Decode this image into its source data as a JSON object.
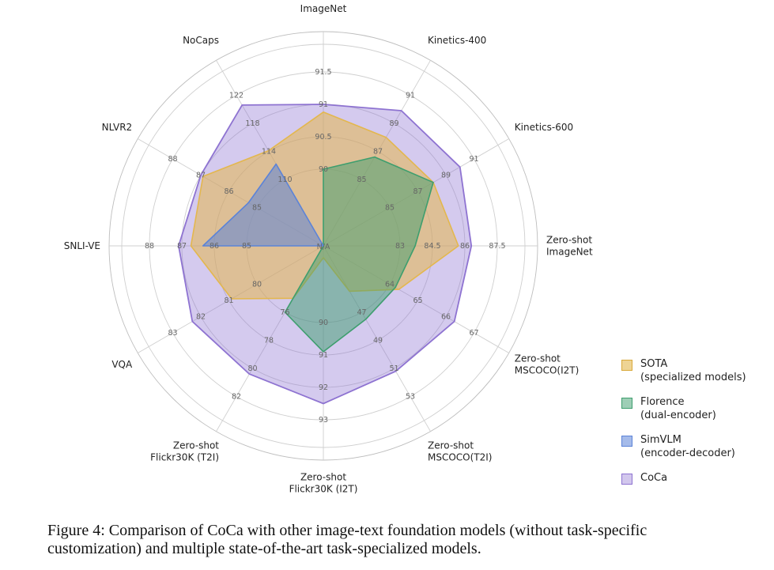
{
  "chart_data": {
    "type": "radar",
    "axes": [
      {
        "label": [
          "ImageNet"
        ],
        "ticks": [
          "90",
          "90.5",
          "91",
          "91.5"
        ]
      },
      {
        "label": [
          "Kinetics-400"
        ],
        "ticks": [
          "85",
          "87",
          "89",
          "91"
        ]
      },
      {
        "label": [
          "Kinetics-600"
        ],
        "ticks": [
          "85",
          "87",
          "89",
          "91"
        ]
      },
      {
        "label": [
          "Zero-shot",
          "ImageNet"
        ],
        "ticks": [
          "83",
          "84.5",
          "86",
          "87.5"
        ]
      },
      {
        "label": [
          "Zero-shot",
          "MSCOCO(I2T)"
        ],
        "ticks": [
          "64",
          "65",
          "66",
          "67"
        ]
      },
      {
        "label": [
          "Zero-shot",
          "MSCOCO(T2I)"
        ],
        "ticks": [
          "47",
          "49",
          "51",
          "53"
        ]
      },
      {
        "label": [
          "Zero-shot",
          "Flickr30K (I2T)"
        ],
        "ticks": [
          "90",
          "91",
          "92",
          "93"
        ]
      },
      {
        "label": [
          "Zero-shot",
          "Flickr30K (T2I)"
        ],
        "ticks": [
          "76",
          "78",
          "80",
          "82"
        ]
      },
      {
        "label": [
          "VQA"
        ],
        "ticks": [
          "80",
          "81",
          "82",
          "83"
        ]
      },
      {
        "label": [
          "SNLI-VE"
        ],
        "ticks": [
          "85",
          "86",
          "87",
          "88"
        ]
      },
      {
        "label": [
          "NLVR2"
        ],
        "ticks": [
          "85",
          "86",
          "87",
          "88"
        ]
      },
      {
        "label": [
          "NoCaps"
        ],
        "ticks": [
          "110",
          "114",
          "118",
          "122"
        ]
      }
    ],
    "center_label": "N/A",
    "series": [
      {
        "name": "SOTA",
        "name_line2": "(specialized models)",
        "color": "#e3b74e",
        "values": [
          90.88,
          88.0,
          88.1,
          85.7,
          64.32,
          45.5,
          88.0,
          75.0,
          80.9,
          86.72,
          86.92,
          114.1
        ]
      },
      {
        "name": "Florence",
        "name_line2": "(dual-encoder)",
        "color": "#3e9e6e",
        "values": [
          90.0,
          86.6,
          88.1,
          83.7,
          64.2,
          47.5,
          90.9,
          76.0,
          0,
          0,
          0,
          0
        ]
      },
      {
        "name": "SimVLM",
        "name_line2": "(encoder-decoder)",
        "color": "#5b83d8",
        "values": [
          0,
          0,
          0,
          0,
          0,
          0,
          0,
          0,
          0,
          86.35,
          85.3,
          112.2
        ]
      },
      {
        "name": "CoCa",
        "name_line2": "",
        "color": "#8e73d1",
        "values": [
          91.0,
          89.9,
          90.0,
          86.3,
          66.3,
          51.2,
          92.5,
          80.4,
          82.3,
          87.1,
          87.0,
          120.6
        ]
      }
    ]
  },
  "caption": {
    "line1": "Figure 4: Comparison of CoCa with other image-text foundation models (without task-specific",
    "line2": "customization) and multiple state-of-the-art task-specialized models."
  }
}
